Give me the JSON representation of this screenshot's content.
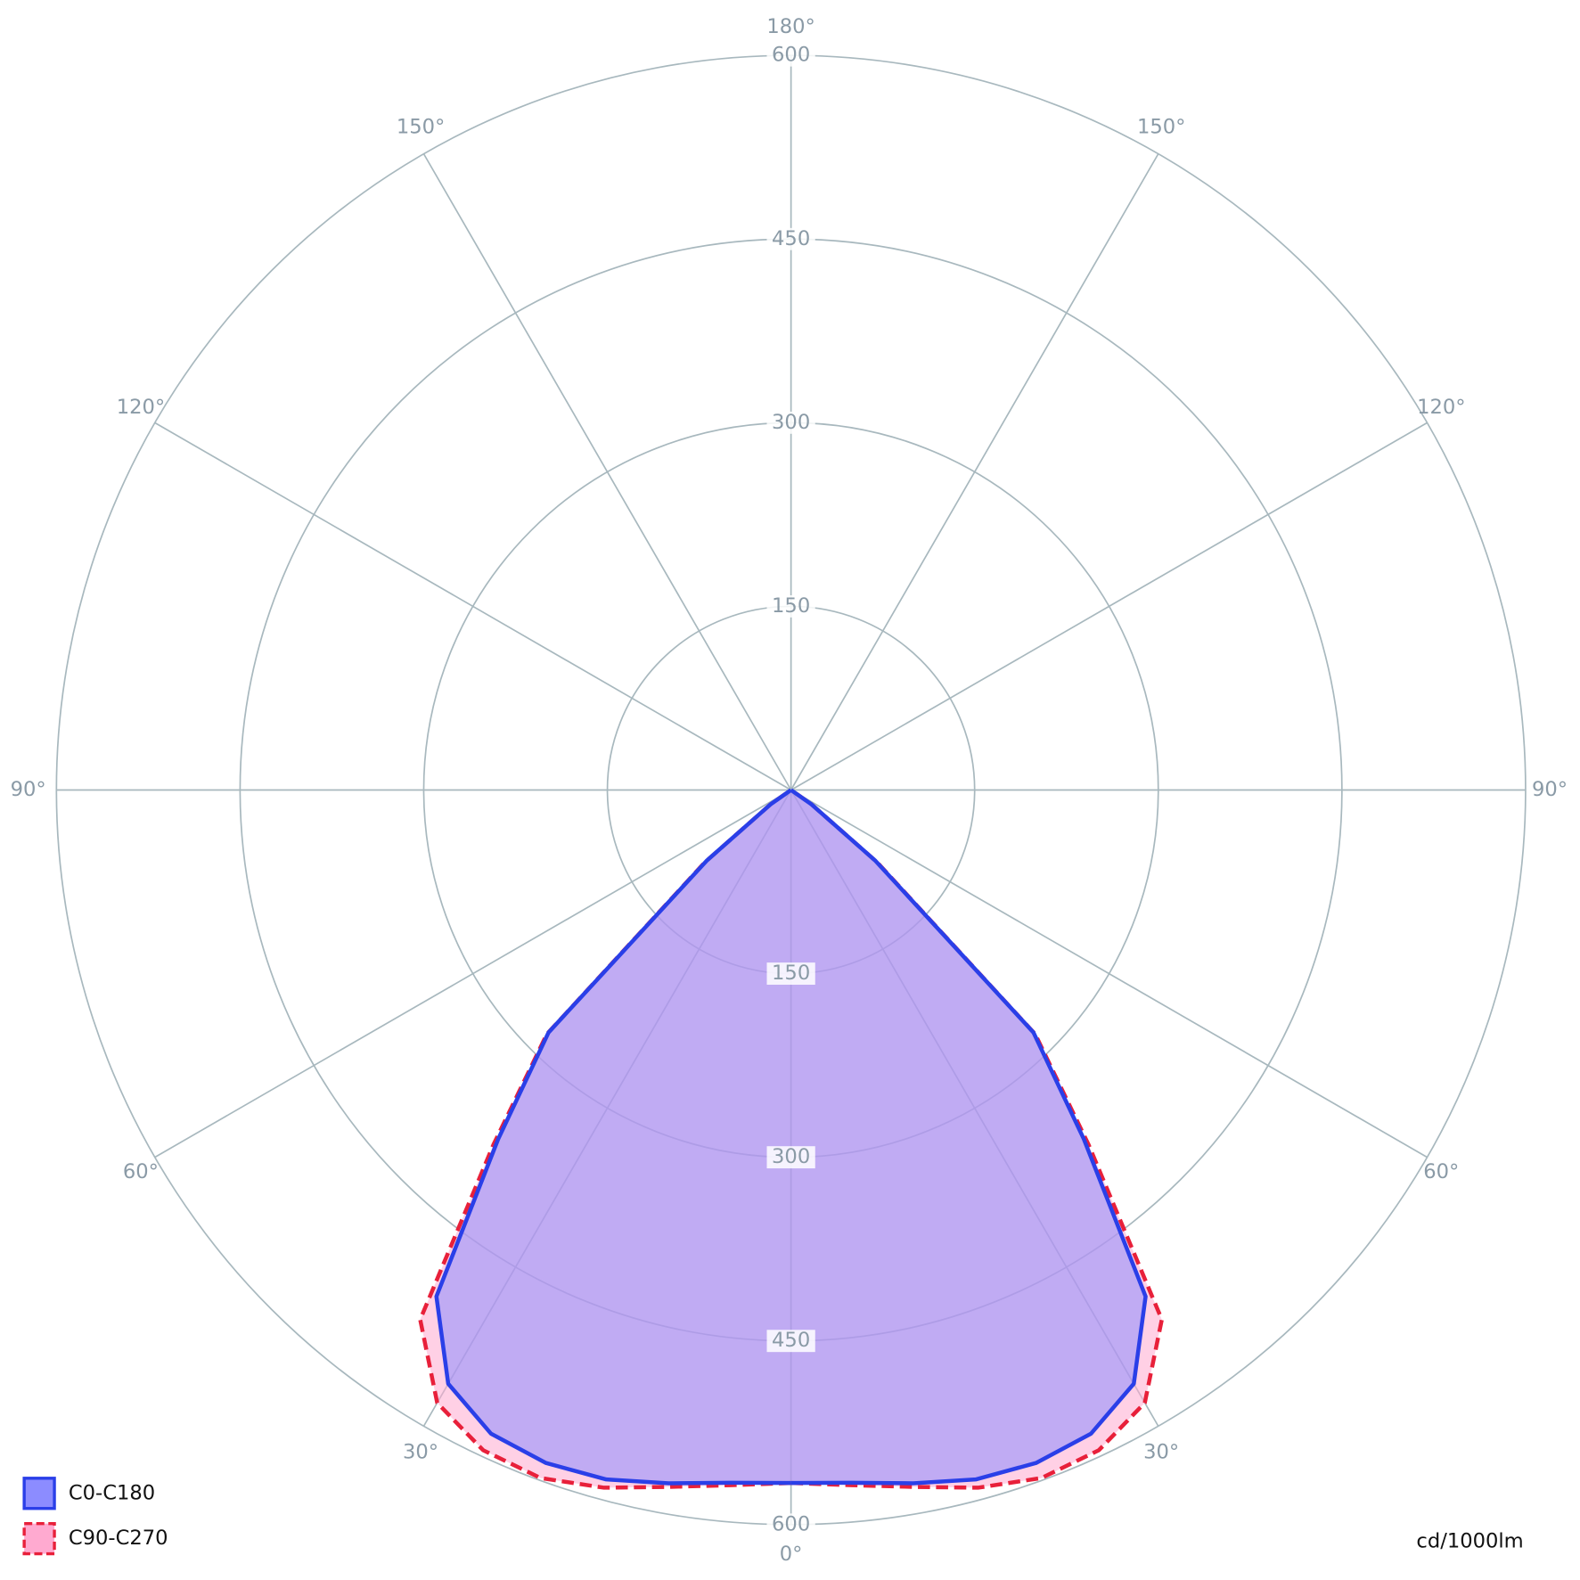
{
  "chart_data": {
    "type": "polar",
    "x": [
      0,
      5,
      10,
      15,
      20,
      25,
      30,
      35,
      40,
      45,
      50,
      55,
      60,
      65,
      70,
      75,
      80,
      85,
      90
    ],
    "series": [
      {
        "name": "C90-C270",
        "color": "#e8203a",
        "fill": "#ffaad0",
        "dashed": true,
        "values": [
          566,
          570,
          578,
          590,
          598,
          595,
          578,
          528,
          378,
          282,
          92,
          20,
          0,
          0,
          0,
          0,
          0,
          0,
          0
        ]
      },
      {
        "name": "C0-C180",
        "color": "#2a3fe8",
        "fill": "#8c8cff",
        "dashed": false,
        "values": [
          566,
          568,
          575,
          583,
          585,
          580,
          560,
          505,
          372,
          280,
          90,
          20,
          0,
          0,
          0,
          0,
          0,
          0,
          0
        ]
      }
    ],
    "rlim": [
      0,
      600
    ],
    "rticks": [
      150,
      300,
      450,
      600
    ],
    "angle_ticks": [
      {
        "value": 0,
        "label": "0°"
      },
      {
        "value": 30,
        "label": "30°"
      },
      {
        "value": 60,
        "label": "60°"
      },
      {
        "value": 90,
        "label": "90°"
      },
      {
        "value": 120,
        "label": "120°"
      },
      {
        "value": 150,
        "label": "150°"
      },
      {
        "value": 180,
        "label": "180°"
      }
    ],
    "unit": "cd/1000lm",
    "grid": true
  }
}
